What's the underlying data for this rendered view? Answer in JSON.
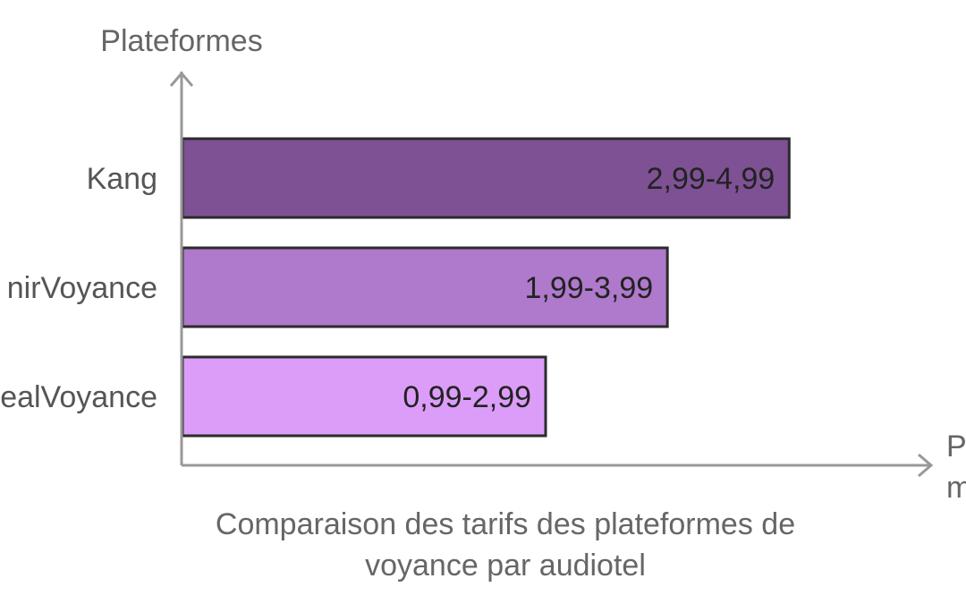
{
  "chart_data": {
    "type": "bar",
    "orientation": "horizontal",
    "ylabel": "Plateformes",
    "xlabel": "P… m…",
    "caption": "Comparaison des tarifs des plateformes de voyance par audiotel",
    "categories": [
      "Kang",
      "…nirVoyance",
      "…ealVoyance"
    ],
    "values": [
      4.99,
      3.99,
      2.99
    ],
    "value_labels": [
      "2,99-4,99",
      "1,99-3,99",
      "0,99-2,99"
    ],
    "xlim": [
      0,
      6.2
    ],
    "colors": [
      "#7e5194",
      "#af79cc",
      "#dc9df8"
    ],
    "grid": false,
    "legend": "none"
  }
}
